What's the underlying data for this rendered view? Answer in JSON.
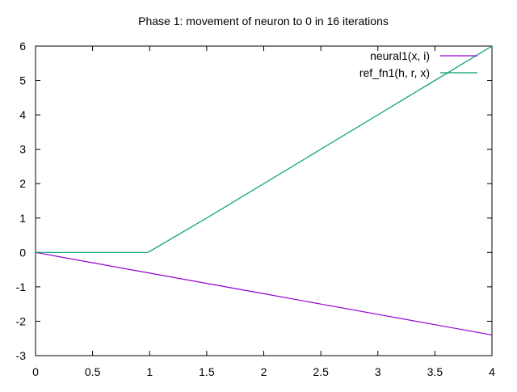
{
  "chart_data": {
    "type": "line",
    "title": "Phase 1: movement of neuron to 0 in 16 iterations",
    "xlabel": "",
    "ylabel": "",
    "xlim": [
      0,
      4
    ],
    "ylim": [
      -3,
      6
    ],
    "x_ticks": [
      "0",
      "0.5",
      "1",
      "1.5",
      "2",
      "2.5",
      "3",
      "3.5",
      "4"
    ],
    "y_ticks": [
      "-3",
      "-2",
      "-1",
      "0",
      "1",
      "2",
      "3",
      "4",
      "5",
      "6"
    ],
    "grid": false,
    "legend_position": "top-right",
    "series": [
      {
        "name": "neural1(x, i)",
        "color": "#9400d3",
        "x": [
          0,
          0.5,
          1,
          1.5,
          2,
          2.5,
          3,
          3.5,
          4
        ],
        "y": [
          0,
          -0.3,
          -0.6,
          -0.9,
          -1.2,
          -1.5,
          -1.8,
          -2.1,
          -2.4
        ]
      },
      {
        "name": "ref_fn1(h, r, x)",
        "color": "#009e73",
        "x": [
          0,
          0.5,
          0.98,
          1,
          1.5,
          2,
          2.5,
          3,
          3.5,
          4
        ],
        "y": [
          0,
          0,
          0,
          0.03,
          1.0,
          2.0,
          3.0,
          4.0,
          5.0,
          6.0
        ]
      }
    ]
  }
}
